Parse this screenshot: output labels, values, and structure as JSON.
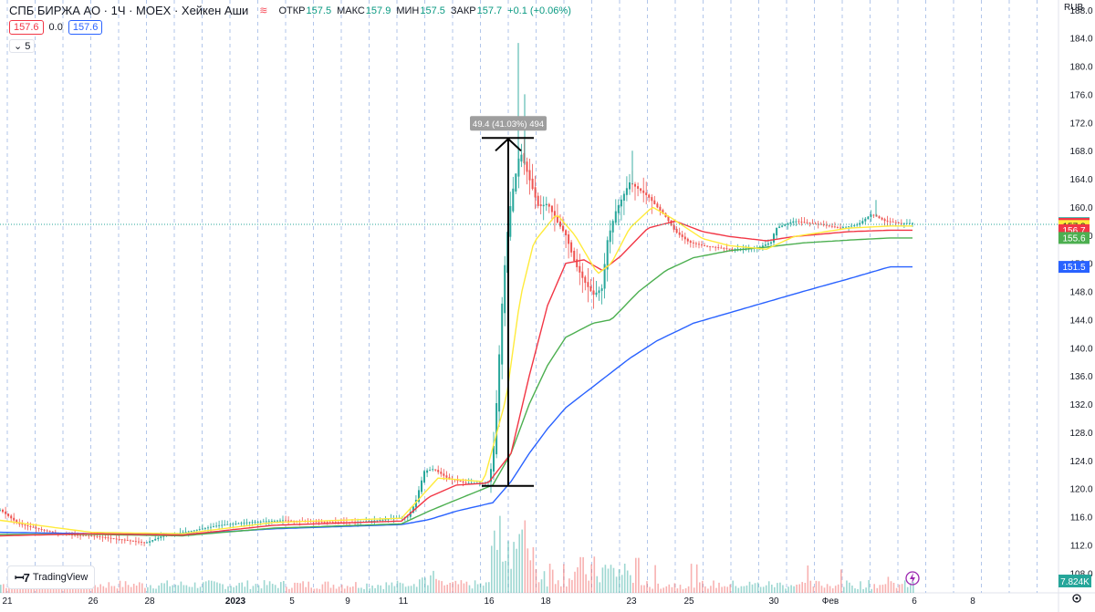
{
  "header": {
    "symbol": "СПБ БИРЖА АО · 1Ч · MOEX · Хейкен Аши",
    "open_label": "ОТКР",
    "open": "157.5",
    "high_label": "МАКС",
    "high": "157.9",
    "low_label": "МИН",
    "low": "157.5",
    "close_label": "ЗАКР",
    "close": "157.7",
    "change": "+0.1 (+0.06%)"
  },
  "indicator_row": {
    "left_value": "157.6",
    "mid_value": "0.0",
    "right_value": "157.6"
  },
  "collapse_label": "⌄ 5",
  "logo_text": "TradingView",
  "currency": "RUB",
  "volume_label": "7.824K",
  "measure": {
    "label": "49.4 (41.03%) 494",
    "from": 120.4,
    "to": 169.8
  },
  "colors": {
    "up": "#26a69a",
    "down": "#ef5350",
    "ma_yellow": "#ffeb3b",
    "ma_red": "#f23645",
    "ma_green": "#4caf50",
    "ma_blue": "#2962ff",
    "last": "#26a69a"
  },
  "chart_data": {
    "type": "candlestick",
    "y_ticks": [
      188.0,
      184.0,
      180.0,
      176.0,
      172.0,
      168.0,
      164.0,
      160.0,
      156.0,
      152.0,
      148.0,
      144.0,
      140.0,
      136.0,
      132.0,
      128.0,
      124.0,
      120.0,
      116.0,
      112.0,
      108.0
    ],
    "ylim": [
      105.2,
      189.4
    ],
    "x_labels": [
      "21",
      "26",
      "28",
      "2023",
      "5",
      "9",
      "11",
      "16",
      "18",
      "23",
      "25",
      "30",
      "Фев",
      "6",
      "8"
    ],
    "last_values": [
      {
        "value": "157.7",
        "color": "#26a69a"
      },
      {
        "value": "157.6",
        "color": "#f23645"
      },
      {
        "value": "157.3",
        "color": "#ffeb3b"
      },
      {
        "value": "156.7",
        "color": "#f23645"
      },
      {
        "value": "155.6",
        "color": "#4caf50"
      },
      {
        "value": "151.5",
        "color": "#2962ff"
      }
    ],
    "price_path": [
      [
        0,
        117.0
      ],
      [
        0.02,
        115.0
      ],
      [
        0.05,
        114.0
      ],
      [
        0.07,
        113.5
      ],
      [
        0.1,
        113.3
      ],
      [
        0.13,
        112.8
      ],
      [
        0.16,
        112.3
      ],
      [
        0.18,
        113.4
      ],
      [
        0.21,
        114.0
      ],
      [
        0.24,
        114.8
      ],
      [
        0.27,
        115.2
      ],
      [
        0.31,
        115.5
      ],
      [
        0.35,
        115.3
      ],
      [
        0.39,
        115.2
      ],
      [
        0.42,
        115.6
      ],
      [
        0.447,
        116.0
      ],
      [
        0.455,
        118.0
      ],
      [
        0.465,
        122.5
      ],
      [
        0.475,
        122.8
      ],
      [
        0.49,
        121.5
      ],
      [
        0.51,
        120.8
      ],
      [
        0.525,
        120.8
      ],
      [
        0.535,
        121.0
      ],
      [
        0.54,
        124.0
      ],
      [
        0.545,
        134.0
      ],
      [
        0.55,
        146.0
      ],
      [
        0.555,
        155.0
      ],
      [
        0.56,
        161.0
      ],
      [
        0.57,
        168.0
      ],
      [
        0.58,
        164.0
      ],
      [
        0.59,
        160.0
      ],
      [
        0.6,
        160.5
      ],
      [
        0.61,
        158.0
      ],
      [
        0.62,
        156.0
      ],
      [
        0.63,
        152.0
      ],
      [
        0.64,
        149.5
      ],
      [
        0.65,
        147.5
      ],
      [
        0.66,
        148.5
      ],
      [
        0.665,
        155.0
      ],
      [
        0.675,
        159.5
      ],
      [
        0.69,
        163.5
      ],
      [
        0.71,
        161.5
      ],
      [
        0.72,
        160.0
      ],
      [
        0.73,
        158.5
      ],
      [
        0.74,
        156.5
      ],
      [
        0.755,
        155.0
      ],
      [
        0.77,
        154.5
      ],
      [
        0.8,
        154.0
      ],
      [
        0.83,
        154.2
      ],
      [
        0.845,
        155.0
      ],
      [
        0.85,
        157.0
      ],
      [
        0.87,
        158.0
      ],
      [
        0.9,
        157.5
      ],
      [
        0.92,
        157.0
      ],
      [
        0.94,
        157.5
      ],
      [
        0.955,
        159.0
      ],
      [
        0.97,
        158.0
      ],
      [
        0.985,
        157.7
      ],
      [
        1.0,
        157.7
      ]
    ],
    "spikes": [
      [
        0.568,
        183.3
      ],
      [
        0.575,
        176.0
      ],
      [
        0.693,
        168.0
      ],
      [
        0.96,
        161.0
      ]
    ],
    "ma_yellow_path": [
      [
        0,
        115.5
      ],
      [
        0.1,
        113.8
      ],
      [
        0.2,
        113.6
      ],
      [
        0.3,
        115.2
      ],
      [
        0.44,
        115.8
      ],
      [
        0.48,
        121.5
      ],
      [
        0.53,
        121.0
      ],
      [
        0.555,
        133.0
      ],
      [
        0.57,
        147.0
      ],
      [
        0.585,
        155.0
      ],
      [
        0.61,
        159.0
      ],
      [
        0.63,
        156.0
      ],
      [
        0.655,
        150.5
      ],
      [
        0.67,
        152.0
      ],
      [
        0.69,
        157.0
      ],
      [
        0.715,
        160.0
      ],
      [
        0.735,
        158.5
      ],
      [
        0.77,
        155.5
      ],
      [
        0.8,
        154.5
      ],
      [
        0.84,
        154.0
      ],
      [
        0.87,
        155.8
      ],
      [
        0.93,
        157.0
      ],
      [
        0.975,
        157.3
      ],
      [
        1.0,
        157.3
      ]
    ],
    "ma_red_path": [
      [
        0,
        113.3
      ],
      [
        0.1,
        113.6
      ],
      [
        0.2,
        113.4
      ],
      [
        0.3,
        114.8
      ],
      [
        0.44,
        115.4
      ],
      [
        0.47,
        118.8
      ],
      [
        0.5,
        120.5
      ],
      [
        0.535,
        120.8
      ],
      [
        0.56,
        125.0
      ],
      [
        0.58,
        136.0
      ],
      [
        0.6,
        146.0
      ],
      [
        0.62,
        152.0
      ],
      [
        0.64,
        152.5
      ],
      [
        0.66,
        151.0
      ],
      [
        0.68,
        153.0
      ],
      [
        0.71,
        157.0
      ],
      [
        0.74,
        158.0
      ],
      [
        0.77,
        156.5
      ],
      [
        0.8,
        155.8
      ],
      [
        0.84,
        155.2
      ],
      [
        0.87,
        155.8
      ],
      [
        0.93,
        156.5
      ],
      [
        0.975,
        156.7
      ],
      [
        1.0,
        156.7
      ]
    ],
    "ma_green_path": [
      [
        0,
        113.5
      ],
      [
        0.1,
        113.5
      ],
      [
        0.2,
        113.3
      ],
      [
        0.3,
        114.4
      ],
      [
        0.44,
        115.0
      ],
      [
        0.47,
        116.8
      ],
      [
        0.5,
        118.4
      ],
      [
        0.54,
        120.5
      ],
      [
        0.56,
        125.0
      ],
      [
        0.58,
        132.0
      ],
      [
        0.6,
        137.5
      ],
      [
        0.62,
        141.5
      ],
      [
        0.65,
        143.5
      ],
      [
        0.67,
        144.0
      ],
      [
        0.7,
        148.0
      ],
      [
        0.73,
        151.0
      ],
      [
        0.76,
        152.8
      ],
      [
        0.8,
        153.8
      ],
      [
        0.84,
        154.3
      ],
      [
        0.88,
        154.9
      ],
      [
        0.93,
        155.3
      ],
      [
        0.975,
        155.6
      ],
      [
        1.0,
        155.6
      ]
    ],
    "ma_blue_path": [
      [
        0,
        113.8
      ],
      [
        0.1,
        113.6
      ],
      [
        0.2,
        113.5
      ],
      [
        0.3,
        114.3
      ],
      [
        0.44,
        114.9
      ],
      [
        0.47,
        115.6
      ],
      [
        0.5,
        116.8
      ],
      [
        0.54,
        118.0
      ],
      [
        0.56,
        121.0
      ],
      [
        0.58,
        125.0
      ],
      [
        0.6,
        128.5
      ],
      [
        0.62,
        131.5
      ],
      [
        0.64,
        133.5
      ],
      [
        0.66,
        135.5
      ],
      [
        0.69,
        138.5
      ],
      [
        0.72,
        141.0
      ],
      [
        0.76,
        143.5
      ],
      [
        0.8,
        145.0
      ],
      [
        0.84,
        146.5
      ],
      [
        0.88,
        148.0
      ],
      [
        0.93,
        149.8
      ],
      [
        0.975,
        151.5
      ],
      [
        1.0,
        151.5
      ]
    ]
  }
}
